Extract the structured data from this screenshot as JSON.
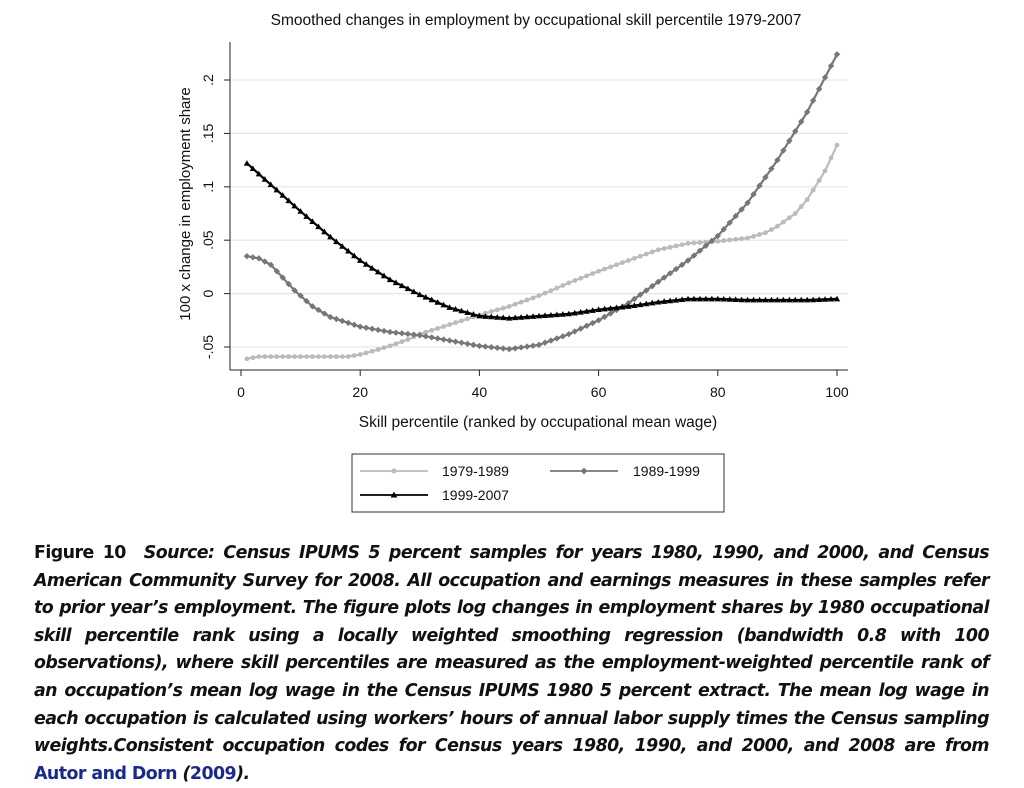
{
  "chart_data": {
    "type": "line",
    "title": "Smoothed changes in employment by occupational skill percentile 1979-2007",
    "xlabel": "Skill percentile (ranked by occupational mean wage)",
    "ylabel": "100 x change in employment share",
    "xlim": [
      0,
      100
    ],
    "ylim": [
      -0.065,
      0.23
    ],
    "xticks": [
      0,
      20,
      40,
      60,
      80,
      100
    ],
    "xtick_labels": [
      "0",
      "20",
      "40",
      "60",
      "80",
      "100"
    ],
    "yticks": [
      -0.05,
      0,
      0.05,
      0.1,
      0.15,
      0.2
    ],
    "ytick_labels": [
      "-.05",
      "0",
      ".05",
      ".1",
      ".15",
      ".2"
    ],
    "grid": true,
    "legend_placement": "bottom",
    "series": [
      {
        "name": "1979-1989",
        "color": "#bbbbbb",
        "marker": "circle",
        "x": [
          1,
          3,
          5,
          8,
          10,
          12,
          15,
          18,
          20,
          22,
          25,
          28,
          30,
          35,
          40,
          45,
          50,
          55,
          60,
          65,
          70,
          75,
          80,
          85,
          88,
          90,
          93,
          95,
          98,
          100
        ],
        "y": [
          -0.061,
          -0.059,
          -0.059,
          -0.059,
          -0.059,
          -0.059,
          -0.059,
          -0.059,
          -0.057,
          -0.054,
          -0.049,
          -0.043,
          -0.038,
          -0.029,
          -0.02,
          -0.012,
          -0.002,
          0.01,
          0.021,
          0.031,
          0.041,
          0.047,
          0.049,
          0.052,
          0.057,
          0.063,
          0.075,
          0.088,
          0.115,
          0.139
        ]
      },
      {
        "name": "1989-1999",
        "color": "#777777",
        "marker": "diamond",
        "x": [
          1,
          3,
          5,
          7,
          9,
          12,
          15,
          20,
          25,
          30,
          35,
          40,
          45,
          50,
          55,
          60,
          65,
          70,
          75,
          80,
          85,
          90,
          95,
          100
        ],
        "y": [
          0.035,
          0.033,
          0.027,
          0.015,
          0.003,
          -0.012,
          -0.022,
          -0.031,
          -0.036,
          -0.039,
          -0.044,
          -0.049,
          -0.052,
          -0.048,
          -0.038,
          -0.025,
          -0.009,
          0.011,
          0.031,
          0.054,
          0.085,
          0.125,
          0.17,
          0.224
        ]
      },
      {
        "name": "1999-2007",
        "color": "#000000",
        "marker": "triangle",
        "x": [
          1,
          5,
          10,
          15,
          20,
          25,
          30,
          35,
          40,
          45,
          50,
          55,
          60,
          65,
          70,
          75,
          80,
          85,
          90,
          95,
          100
        ],
        "y": [
          0.122,
          0.102,
          0.077,
          0.053,
          0.031,
          0.013,
          -0.001,
          -0.013,
          -0.021,
          -0.023,
          -0.021,
          -0.019,
          -0.015,
          -0.012,
          -0.008,
          -0.005,
          -0.005,
          -0.006,
          -0.006,
          -0.006,
          -0.005
        ]
      }
    ]
  },
  "caption": {
    "figure_label": "Figure 10",
    "text_before_link": "Source: Census IPUMS 5 percent samples for years 1980, 1990, and 2000, and Census American Community Survey for 2008. All occupation and earnings measures in these samples refer to prior year’s employment. The figure plots log changes in employment shares by 1980 occupational skill percentile rank using a locally weighted smoothing regression (bandwidth 0.8 with 100 observations), where skill percentiles are measured as the employment-weighted percentile rank of an occupation’s mean log wage in the Census IPUMS 1980 5 percent extract. The mean log wage in each occupation is calculated using workers’ hours of annual labor supply times the Census sampling weights.Consistent occupation codes for Census years 1980, 1990, and 2000, and 2008 are from",
    "link_authors": "Autor and Dorn",
    "paren_open": " (",
    "link_year": "2009",
    "paren_close": ").",
    "link_color": "#1a2a8a"
  }
}
